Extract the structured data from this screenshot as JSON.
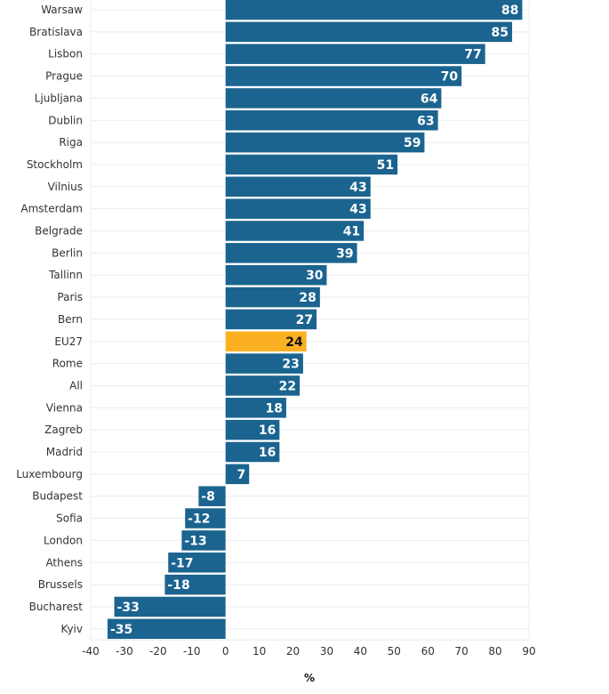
{
  "chart_data": {
    "type": "bar",
    "orientation": "horizontal",
    "title": "",
    "xlabel": "%",
    "ylabel": "",
    "xlim": [
      -40,
      90
    ],
    "xticks": [
      -40,
      -30,
      -20,
      -10,
      0,
      10,
      20,
      30,
      40,
      50,
      60,
      70,
      80,
      90
    ],
    "grid": true,
    "categories": [
      "Warsaw",
      "Bratislava",
      "Lisbon",
      "Prague",
      "Ljubljana",
      "Dublin",
      "Riga",
      "Stockholm",
      "Vilnius",
      "Amsterdam",
      "Belgrade",
      "Berlin",
      "Tallinn",
      "Paris",
      "Bern",
      "EU27",
      "Rome",
      "All",
      "Vienna",
      "Zagreb",
      "Madrid",
      "Luxembourg",
      "Budapest",
      "Sofia",
      "London",
      "Athens",
      "Brussels",
      "Bucharest",
      "Kyiv"
    ],
    "values": [
      88,
      85,
      77,
      70,
      64,
      63,
      59,
      51,
      43,
      43,
      41,
      39,
      30,
      28,
      27,
      24,
      23,
      22,
      18,
      16,
      16,
      7,
      -8,
      -12,
      -13,
      -17,
      -18,
      -33,
      -35
    ],
    "highlight": "EU27",
    "colors": {
      "default": "#1b6490",
      "highlight": "#fbb022"
    },
    "data_labels": true
  }
}
